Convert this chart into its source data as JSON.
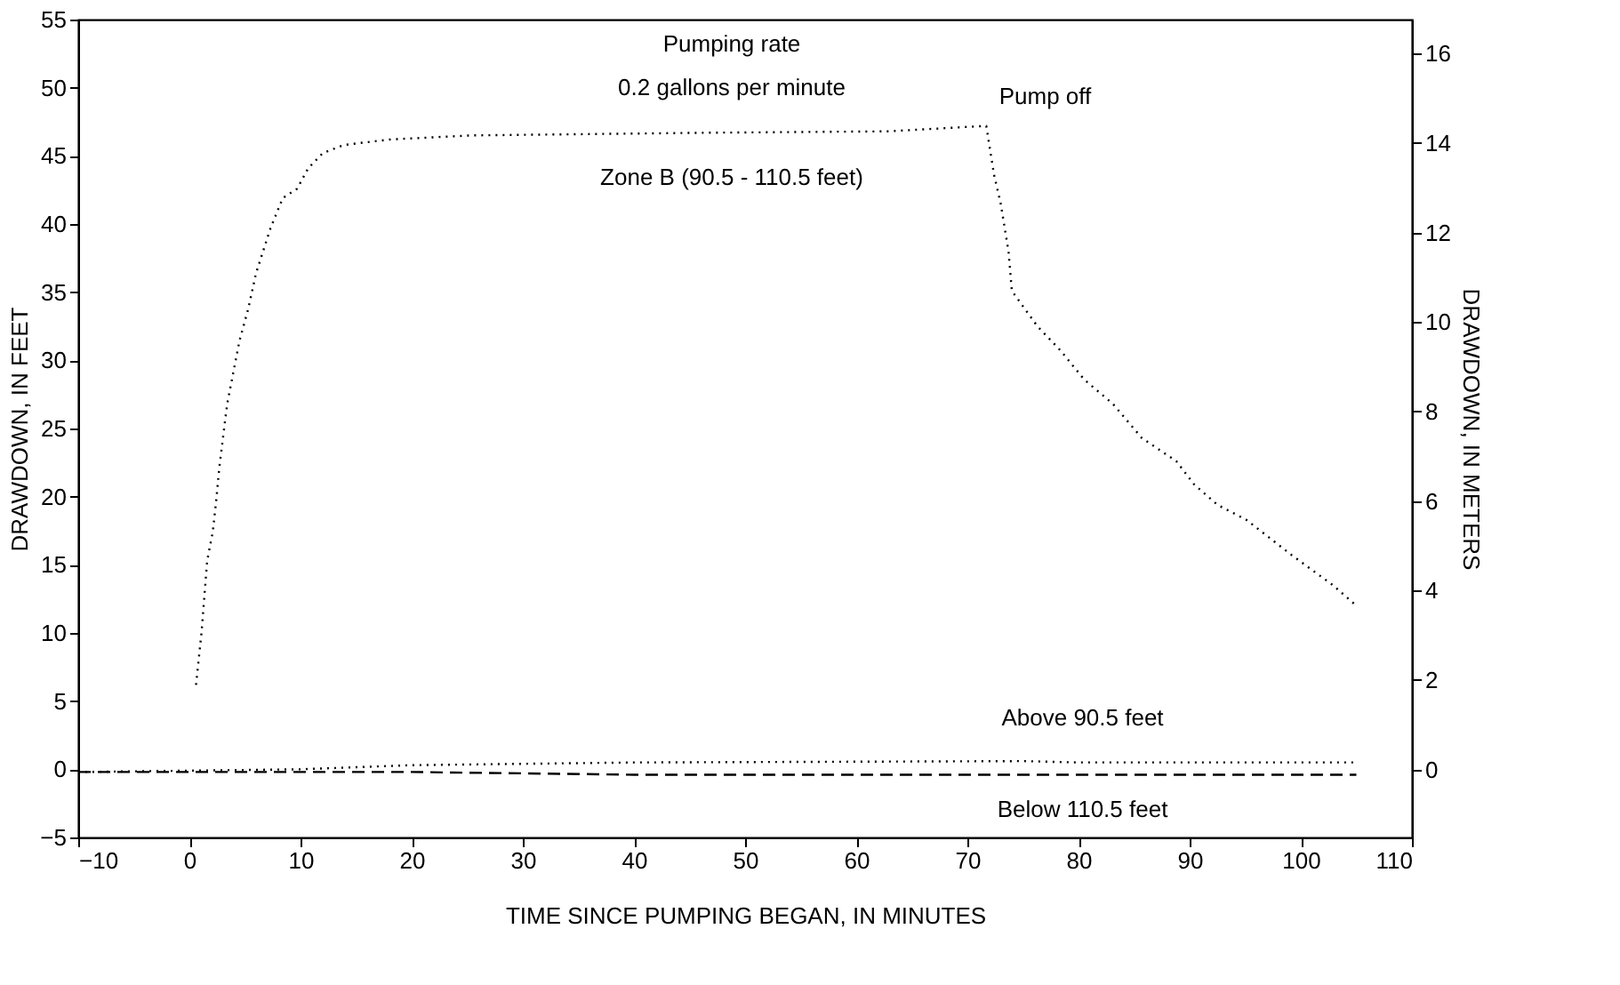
{
  "chart_data": {
    "type": "line",
    "xlabel": "TIME SINCE PUMPING BEGAN, IN MINUTES",
    "ylabel": "DRAWDOWN, IN FEET",
    "y2label": "DRAWDOWN, IN METERS",
    "xlim": [
      -10,
      110
    ],
    "xticks": [
      -10,
      0,
      10,
      20,
      30,
      40,
      50,
      60,
      70,
      80,
      90,
      100,
      110
    ],
    "ylim": [
      -5,
      55
    ],
    "yticks": [
      -5,
      0,
      5,
      10,
      15,
      20,
      25,
      30,
      35,
      40,
      45,
      50,
      55
    ],
    "y2lim": [
      -1.52,
      16.76
    ],
    "y2ticks": [
      0,
      2,
      4,
      6,
      8,
      10,
      12,
      14,
      16
    ],
    "grid": false,
    "series": [
      {
        "color": "#000000",
        "line_style": "dotted",
        "x": [
          0.6,
          1.1,
          1.6,
          2.1,
          2.4,
          2.7,
          3.4,
          4.5,
          5.3,
          6,
          7.3,
          8.4,
          9.7,
          10.7,
          12,
          13.9,
          18,
          25.3,
          47,
          62.8,
          71.7,
          72.4,
          73,
          73.7,
          74,
          76.3,
          78.4,
          80.5,
          83.1,
          85.7,
          88.8,
          90.4,
          92.5,
          95.1,
          99.2,
          102.9,
          105
        ],
        "values": [
          6.2,
          10.1,
          15.3,
          17.4,
          19.6,
          22.2,
          26.8,
          31.4,
          33.8,
          36.4,
          39.7,
          41.9,
          42.6,
          44.1,
          45.2,
          45.8,
          46.2,
          46.5,
          46.7,
          46.8,
          47.2,
          43.6,
          41.5,
          38,
          35.1,
          32.5,
          30.7,
          28.6,
          26.8,
          24.3,
          22.6,
          20.9,
          19.4,
          18.3,
          15.7,
          13.5,
          12
        ]
      },
      {
        "color": "#000000",
        "line_style": "dotted",
        "x": [
          -10,
          10,
          20,
          40,
          75,
          80,
          105
        ],
        "values": [
          -0.2,
          0,
          0.3,
          0.5,
          0.6,
          0.5,
          0.5
        ]
      },
      {
        "color": "#000000",
        "line_style": "dashed",
        "x": [
          -10,
          20,
          40,
          105
        ],
        "values": [
          -0.2,
          -0.2,
          -0.4,
          -0.4
        ]
      }
    ],
    "annotations": [
      "Pumping rate",
      "0.2 gallons per minute",
      "Zone B (90.5 - 110.5 feet)",
      "Pump off",
      "Above 90.5 feet",
      "Below 110.5 feet"
    ]
  }
}
